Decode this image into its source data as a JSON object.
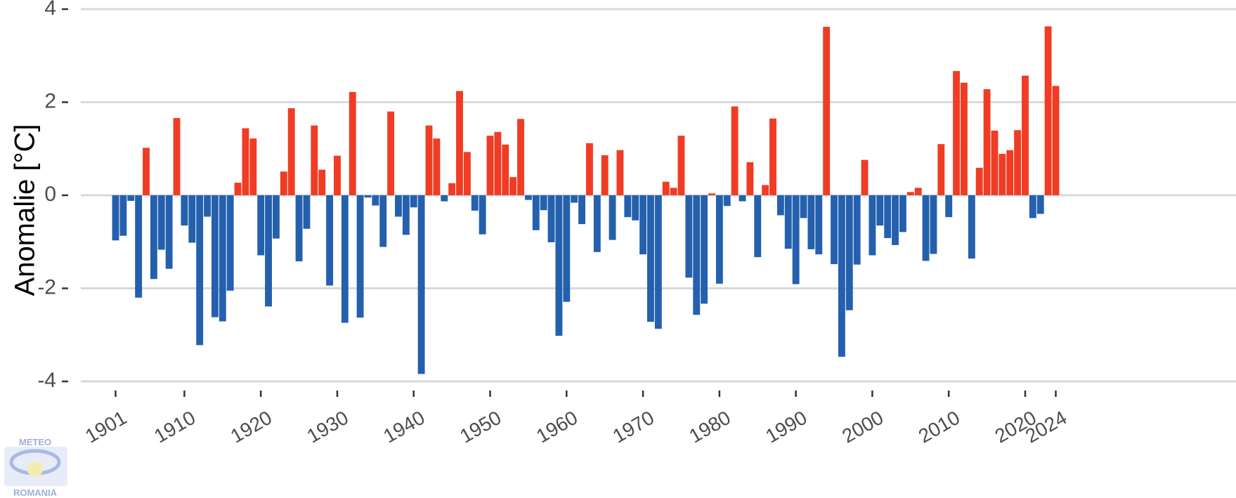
{
  "chart_data": {
    "type": "bar",
    "title": "",
    "xlabel": "",
    "ylabel": "Anomalie [°C]",
    "ylim": [
      -4,
      4
    ],
    "yticks": [
      4,
      2,
      0,
      -2,
      -4
    ],
    "ytick_labels": [
      "4",
      "2",
      "0",
      "-2",
      "-4"
    ],
    "xtick_labels": [
      "1901",
      "1910",
      "1920",
      "1930",
      "1940",
      "1950",
      "1960",
      "1970",
      "1980",
      "1990",
      "2000",
      "2010",
      "2020",
      "2024"
    ],
    "xticks": [
      1901,
      1910,
      1920,
      1930,
      1940,
      1950,
      1960,
      1970,
      1980,
      1990,
      2000,
      2010,
      2020,
      2024
    ],
    "grid": true,
    "legend": "none",
    "colors": {
      "positive": "#f03c24",
      "negative": "#2460ad",
      "grid": "#d9d9d9"
    },
    "x": [
      1901,
      1902,
      1903,
      1904,
      1905,
      1906,
      1907,
      1908,
      1909,
      1910,
      1911,
      1912,
      1913,
      1914,
      1915,
      1916,
      1917,
      1918,
      1919,
      1920,
      1921,
      1922,
      1923,
      1924,
      1925,
      1926,
      1927,
      1928,
      1929,
      1930,
      1931,
      1932,
      1933,
      1934,
      1935,
      1936,
      1937,
      1938,
      1939,
      1940,
      1941,
      1942,
      1943,
      1944,
      1945,
      1946,
      1947,
      1948,
      1949,
      1950,
      1951,
      1952,
      1953,
      1954,
      1955,
      1956,
      1957,
      1958,
      1959,
      1960,
      1961,
      1962,
      1963,
      1964,
      1965,
      1966,
      1967,
      1968,
      1969,
      1970,
      1971,
      1972,
      1973,
      1974,
      1975,
      1976,
      1977,
      1978,
      1979,
      1980,
      1981,
      1982,
      1983,
      1984,
      1985,
      1986,
      1987,
      1988,
      1989,
      1990,
      1991,
      1992,
      1993,
      1994,
      1995,
      1996,
      1997,
      1998,
      1999,
      2000,
      2001,
      2002,
      2003,
      2004,
      2005,
      2006,
      2007,
      2008,
      2009,
      2010,
      2011,
      2012,
      2013,
      2014,
      2015,
      2016,
      2017,
      2018,
      2019,
      2020,
      2021,
      2022,
      2023,
      2024
    ],
    "values": [
      -0.97,
      -0.87,
      -0.12,
      -2.2,
      1.02,
      -1.8,
      -1.17,
      -1.58,
      1.66,
      -0.65,
      -1.02,
      -3.22,
      -0.46,
      -2.62,
      -2.71,
      -2.05,
      0.27,
      1.44,
      1.22,
      -1.29,
      -2.39,
      -0.93,
      0.51,
      1.87,
      -1.42,
      -0.72,
      1.5,
      0.55,
      -1.94,
      0.85,
      -2.74,
      2.22,
      -2.63,
      -0.05,
      -0.22,
      -1.11,
      1.8,
      -0.46,
      -0.85,
      -0.26,
      -3.84,
      1.5,
      1.22,
      -0.13,
      0.26,
      2.24,
      0.93,
      -0.33,
      -0.84,
      1.28,
      1.36,
      1.09,
      0.39,
      1.64,
      -0.1,
      -0.75,
      -0.32,
      -1.01,
      -3.02,
      -2.29,
      -0.16,
      -0.62,
      1.12,
      -1.22,
      0.86,
      -0.96,
      0.97,
      -0.47,
      -0.54,
      -1.27,
      -2.72,
      -2.87,
      0.29,
      0.16,
      1.28,
      -1.77,
      -2.57,
      -2.33,
      0.04,
      -1.9,
      -0.23,
      1.91,
      -0.13,
      0.71,
      -1.33,
      0.22,
      1.65,
      -0.43,
      -1.15,
      -1.91,
      -0.49,
      -1.16,
      -1.27,
      3.62,
      -1.48,
      -3.47,
      -2.47,
      -1.49,
      0.76,
      -1.29,
      -0.65,
      -0.92,
      -1.07,
      -0.79,
      0.07,
      0.16,
      -1.41,
      -1.26,
      1.1,
      -0.47,
      2.67,
      2.42,
      -1.36,
      0.59,
      2.28,
      1.39,
      0.89,
      0.97,
      1.4,
      2.57,
      -0.49,
      -0.4,
      3.63,
      2.35
    ]
  },
  "logo": {
    "top": "METEO",
    "bottom": "ROMANIA"
  }
}
